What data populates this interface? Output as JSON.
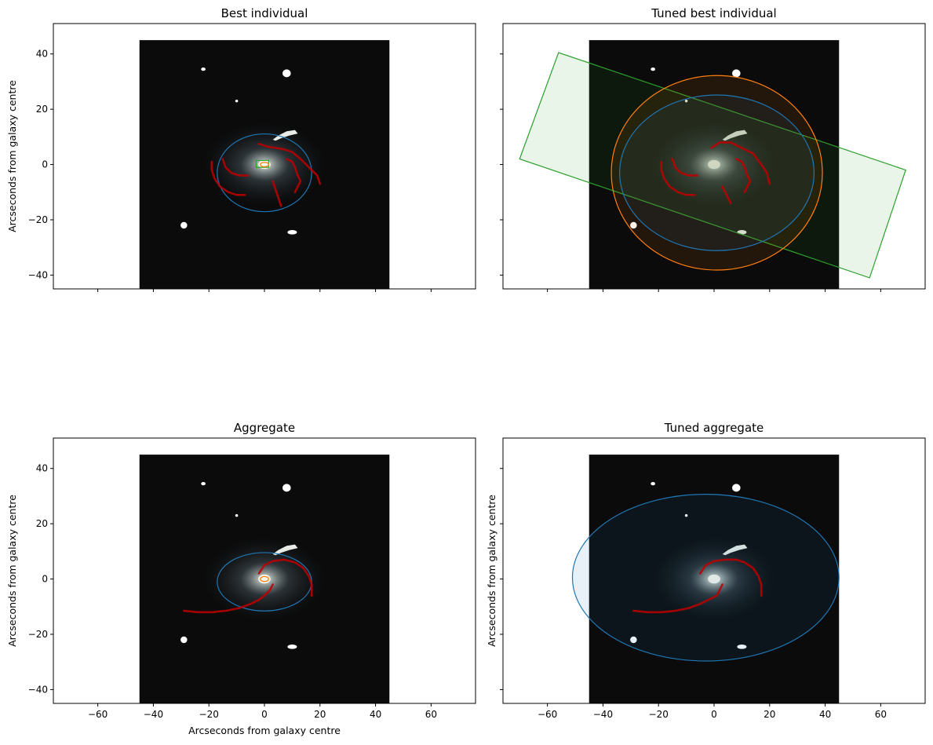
{
  "figure": {
    "colors": {
      "blue": "#1f77b4",
      "orange": "#ff7f0e",
      "green": "#2ca02c",
      "red_arm": "#c00000",
      "image_bg": "#0b0b0b",
      "star": "#ffffff"
    },
    "label_text": "Arcseconds from galaxy centre"
  },
  "chart_data": [
    {
      "id": "p0",
      "type": "image-overlay",
      "title": "Best individual",
      "xlabel": "Arcseconds from galaxy centre",
      "ylabel": "Arcseconds from galaxy centre",
      "show_xlabel": false,
      "show_ylabel": true,
      "show_xticklabels": false,
      "show_yticklabels": true,
      "xlim": [
        -76,
        76
      ],
      "ylim": [
        -45,
        51
      ],
      "xticks": [
        -60,
        -40,
        -20,
        0,
        20,
        40,
        60
      ],
      "yticks": [
        -40,
        -20,
        0,
        20,
        40
      ],
      "image_extent": [
        -45,
        45,
        -45,
        45
      ],
      "components": {
        "disk": {
          "cx": 0,
          "cy": -3,
          "rx": 17,
          "ry": 14,
          "color": "#1f77b4",
          "fill": false
        },
        "bulge": {
          "cx": 0,
          "cy": 0,
          "rx": 1.5,
          "ry": 0.8,
          "color": "#ff7f0e",
          "fill": false
        },
        "bar": {
          "corners": [
            [
              -3,
              1.5
            ],
            [
              1.5,
              1.5
            ],
            [
              1.5,
              -1
            ],
            [
              -3,
              -1
            ]
          ],
          "color": "#2ca02c",
          "fill": false
        }
      },
      "arms": [
        [
          [
            -2,
            7.5
          ],
          [
            1,
            6.5
          ],
          [
            4,
            6
          ],
          [
            7,
            5.5
          ],
          [
            10,
            4.5
          ],
          [
            13,
            2
          ],
          [
            15,
            0
          ],
          [
            17,
            -2
          ],
          [
            19,
            -4
          ],
          [
            20,
            -7
          ]
        ],
        [
          [
            8,
            2
          ],
          [
            10,
            1
          ],
          [
            11,
            -1
          ],
          [
            12,
            -4
          ],
          [
            13,
            -6
          ],
          [
            12,
            -8
          ],
          [
            11,
            -10
          ]
        ],
        [
          [
            3,
            -6
          ],
          [
            4,
            -9
          ],
          [
            5,
            -12
          ],
          [
            6,
            -15
          ]
        ],
        [
          [
            -19,
            1
          ],
          [
            -19,
            -2
          ],
          [
            -18,
            -5
          ],
          [
            -16,
            -8
          ],
          [
            -13,
            -10
          ],
          [
            -10,
            -11
          ],
          [
            -7,
            -11
          ]
        ],
        [
          [
            -15,
            2
          ],
          [
            -14,
            -1
          ],
          [
            -12,
            -3
          ],
          [
            -9,
            -4
          ],
          [
            -6,
            -4
          ]
        ]
      ]
    },
    {
      "id": "p1",
      "type": "image-overlay",
      "title": "Tuned best individual",
      "xlabel": "Arcseconds from galaxy centre",
      "ylabel": "Arcseconds from galaxy centre",
      "show_xlabel": false,
      "show_ylabel": false,
      "show_xticklabels": false,
      "show_yticklabels": false,
      "xlim": [
        -76,
        76
      ],
      "ylim": [
        -45,
        51
      ],
      "xticks": [
        -60,
        -40,
        -20,
        0,
        20,
        40,
        60
      ],
      "yticks": [
        -40,
        -20,
        0,
        20,
        40
      ],
      "image_extent": [
        -45,
        45,
        -45,
        45
      ],
      "components": {
        "disk": {
          "cx": 1,
          "cy": -3,
          "rx": 38,
          "ry": 35,
          "color": "#ff7f0e",
          "fill": true
        },
        "bulge": {
          "cx": 1,
          "cy": -3,
          "rx": 35,
          "ry": 28,
          "color": "#1f77b4",
          "fill": true
        },
        "bar": {
          "corners": [
            [
              -70,
              2
            ],
            [
              -56,
              40.5
            ],
            [
              69,
              -2
            ],
            [
              56,
              -41
            ]
          ],
          "color": "#2ca02c",
          "fill": true
        }
      },
      "arms": [
        [
          [
            -1,
            6
          ],
          [
            2,
            8
          ],
          [
            6,
            8
          ],
          [
            10,
            6
          ],
          [
            14,
            4
          ],
          [
            17,
            0
          ],
          [
            19,
            -3
          ],
          [
            20,
            -7
          ]
        ],
        [
          [
            8,
            2
          ],
          [
            10,
            1
          ],
          [
            11,
            -1
          ],
          [
            12,
            -4
          ],
          [
            13,
            -6
          ],
          [
            12,
            -8
          ],
          [
            11,
            -10
          ]
        ],
        [
          [
            3,
            -8
          ],
          [
            4,
            -10
          ],
          [
            5,
            -12
          ],
          [
            6,
            -14
          ]
        ],
        [
          [
            -19,
            1
          ],
          [
            -19,
            -2
          ],
          [
            -18,
            -5
          ],
          [
            -16,
            -8
          ],
          [
            -13,
            -10
          ],
          [
            -10,
            -11
          ],
          [
            -7,
            -11
          ]
        ],
        [
          [
            -15,
            2
          ],
          [
            -14,
            -1
          ],
          [
            -12,
            -3
          ],
          [
            -9,
            -4
          ],
          [
            -6,
            -4
          ]
        ]
      ]
    },
    {
      "id": "p2",
      "type": "image-overlay",
      "title": "Aggregate",
      "xlabel": "Arcseconds from galaxy centre",
      "ylabel": "Arcseconds from galaxy centre",
      "show_xlabel": true,
      "show_ylabel": true,
      "show_xticklabels": true,
      "show_yticklabels": true,
      "xlim": [
        -76,
        76
      ],
      "ylim": [
        -45,
        51
      ],
      "xticks": [
        -60,
        -40,
        -20,
        0,
        20,
        40,
        60
      ],
      "yticks": [
        -40,
        -20,
        0,
        20,
        40
      ],
      "image_extent": [
        -45,
        45,
        -45,
        45
      ],
      "components": {
        "disk": {
          "cx": 0,
          "cy": -1,
          "rx": 17,
          "ry": 10.5,
          "color": "#1f77b4",
          "fill": false
        },
        "bulge": {
          "cx": 0,
          "cy": 0,
          "rx": 1.5,
          "ry": 0.9,
          "color": "#ff7f0e",
          "fill": false
        }
      },
      "arms": [
        [
          [
            -2,
            2
          ],
          [
            0,
            5
          ],
          [
            3,
            6.5
          ],
          [
            7,
            7
          ],
          [
            11,
            6
          ],
          [
            14,
            4
          ],
          [
            16,
            1
          ],
          [
            17,
            -2
          ],
          [
            17,
            -6
          ]
        ],
        [
          [
            -29,
            -11.5
          ],
          [
            -24,
            -12
          ],
          [
            -19,
            -12
          ],
          [
            -14,
            -11.5
          ],
          [
            -9,
            -10.5
          ],
          [
            -5,
            -9
          ],
          [
            -2,
            -7.5
          ],
          [
            0,
            -6
          ],
          [
            2,
            -4
          ],
          [
            3,
            -2
          ]
        ]
      ]
    },
    {
      "id": "p3",
      "type": "image-overlay",
      "title": "Tuned aggregate",
      "xlabel": "Arcseconds from galaxy centre",
      "ylabel": "Arcseconds from galaxy centre",
      "show_xlabel": false,
      "show_ylabel": true,
      "show_xticklabels": true,
      "show_yticklabels": false,
      "xlim": [
        -76,
        76
      ],
      "ylim": [
        -45,
        51
      ],
      "xticks": [
        -60,
        -40,
        -20,
        0,
        20,
        40,
        60
      ],
      "yticks": [
        -40,
        -20,
        0,
        20,
        40
      ],
      "image_extent": [
        -45,
        45,
        -45,
        45
      ],
      "components": {
        "disk": {
          "cx": -3,
          "cy": 0.5,
          "rx": 48,
          "ry": 30,
          "color": "#1f77b4",
          "fill": true
        }
      },
      "arms": [
        [
          [
            -5,
            2
          ],
          [
            -3,
            5
          ],
          [
            0,
            6.5
          ],
          [
            4,
            7
          ],
          [
            8,
            7
          ],
          [
            11,
            6
          ],
          [
            14,
            4
          ],
          [
            16,
            1
          ],
          [
            17,
            -2
          ],
          [
            17,
            -6
          ]
        ],
        [
          [
            -29,
            -11.5
          ],
          [
            -24,
            -12
          ],
          [
            -19,
            -12
          ],
          [
            -14,
            -11.5
          ],
          [
            -9,
            -10.5
          ],
          [
            -5,
            -9
          ],
          [
            -2,
            -7.5
          ],
          [
            1,
            -6
          ],
          [
            2,
            -4
          ],
          [
            3,
            -2
          ]
        ]
      ]
    }
  ]
}
